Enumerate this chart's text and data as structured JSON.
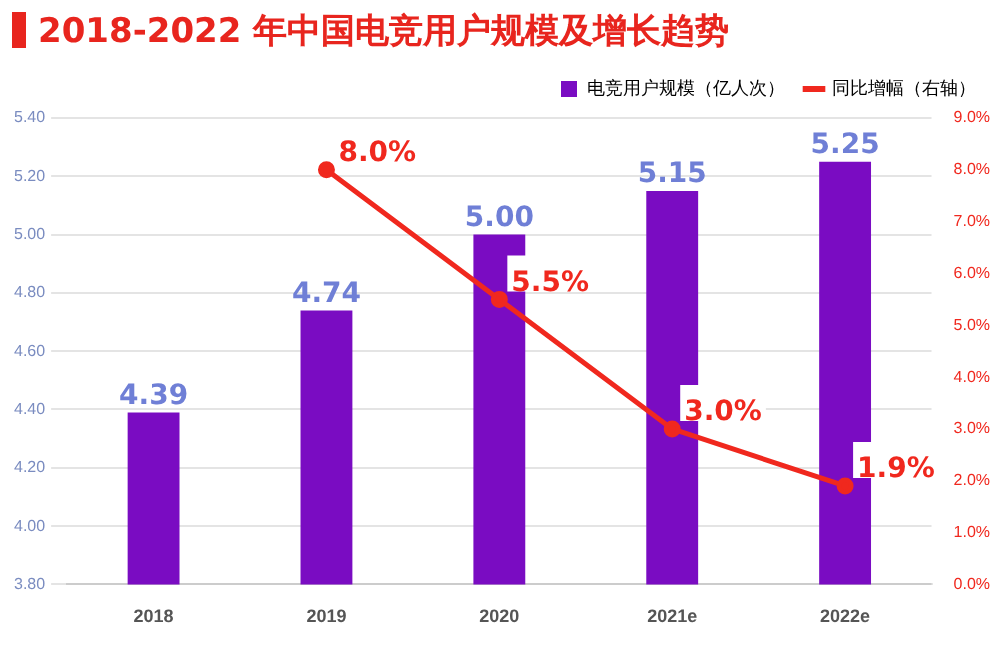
{
  "chart_data": {
    "type": "bar",
    "title": "2018-2022 年中国电竞用户规模及增长趋势",
    "categories": [
      "2018",
      "2019",
      "2020",
      "2021e",
      "2022e"
    ],
    "series": [
      {
        "name": "电竞用户规模（亿人次）",
        "color": "#7a0cc2",
        "values": [
          4.39,
          4.74,
          5.0,
          5.15,
          5.25
        ],
        "value_labels": [
          "4.39",
          "4.74",
          "5.00",
          "5.15",
          "5.25"
        ]
      },
      {
        "name": "同比增幅（右轴）",
        "type": "line",
        "axis": "y2",
        "color": "#f0281e",
        "values": [
          null,
          8.0,
          5.5,
          3.0,
          1.9
        ],
        "value_labels": [
          null,
          "8.0%",
          "5.5%",
          "3.0%",
          "1.9%"
        ]
      }
    ],
    "ylim": [
      3.8,
      5.4
    ],
    "yticks": [
      {
        "value": 3.8,
        "label": "3.80"
      },
      {
        "value": 4.0,
        "label": "4.00"
      },
      {
        "value": 4.2,
        "label": "4.20"
      },
      {
        "value": 4.4,
        "label": "4.40"
      },
      {
        "value": 4.6,
        "label": "4.60"
      },
      {
        "value": 4.8,
        "label": "4.80"
      },
      {
        "value": 5.0,
        "label": "5.00"
      },
      {
        "value": 5.2,
        "label": "5.20"
      },
      {
        "value": 5.4,
        "label": "5.40"
      }
    ],
    "y2lim": [
      0,
      9
    ],
    "y2ticks": [
      {
        "value": 0,
        "label": "0.0%"
      },
      {
        "value": 1,
        "label": "1.0%"
      },
      {
        "value": 2,
        "label": "2.0%"
      },
      {
        "value": 3,
        "label": "3.0%"
      },
      {
        "value": 4,
        "label": "4.0%"
      },
      {
        "value": 5,
        "label": "5.0%"
      },
      {
        "value": 6,
        "label": "6.0%"
      },
      {
        "value": 7,
        "label": "7.0%"
      },
      {
        "value": 8,
        "label": "8.0%"
      },
      {
        "value": 9,
        "label": "9.0%"
      }
    ],
    "grid": "y",
    "legend": "top right",
    "marker": "circle",
    "line_style": "solid"
  }
}
